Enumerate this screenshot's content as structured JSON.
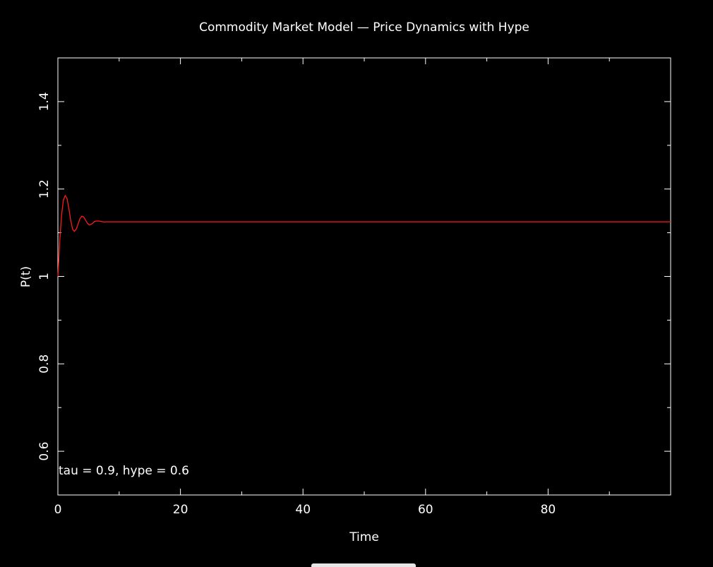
{
  "colors": {
    "background": "#000000",
    "axes": "#ffffff",
    "series": "#ff1a1a"
  },
  "chart_data": {
    "type": "line",
    "title": "Commodity Market Model — Price Dynamics with Hype",
    "xlabel": "Time",
    "ylabel": "P(t)",
    "xlim": [
      0,
      100
    ],
    "ylim": [
      0.5,
      1.5
    ],
    "xticks": [
      0,
      20,
      40,
      60,
      80
    ],
    "xtick_labels": [
      "0",
      "20",
      "40",
      "60",
      "80"
    ],
    "yticks": [
      0.6,
      0.8,
      1.0,
      1.2,
      1.4
    ],
    "ytick_labels": [
      "0.6",
      "0.8",
      "1",
      "1.2",
      "1.4"
    ],
    "grid": false,
    "annotation": "tau = 0.9, hype = 0.6",
    "series": [
      {
        "color": "#ff1a1a",
        "x": [
          0,
          0.3,
          0.6,
          0.9,
          1.2,
          1.5,
          1.8,
          2.1,
          2.4,
          2.7,
          3.0,
          3.3,
          3.6,
          3.9,
          4.2,
          4.5,
          4.8,
          5.1,
          5.4,
          5.7,
          6.0,
          6.5,
          7.0,
          7.5,
          8.0,
          9.0,
          10,
          15,
          20,
          40,
          60,
          80,
          100
        ],
        "y": [
          1.0,
          1.08,
          1.14,
          1.175,
          1.185,
          1.178,
          1.155,
          1.128,
          1.108,
          1.103,
          1.108,
          1.12,
          1.132,
          1.138,
          1.136,
          1.129,
          1.122,
          1.118,
          1.119,
          1.122,
          1.126,
          1.127,
          1.126,
          1.1245,
          1.125,
          1.125,
          1.125,
          1.125,
          1.125,
          1.125,
          1.125,
          1.125,
          1.125
        ]
      }
    ]
  }
}
